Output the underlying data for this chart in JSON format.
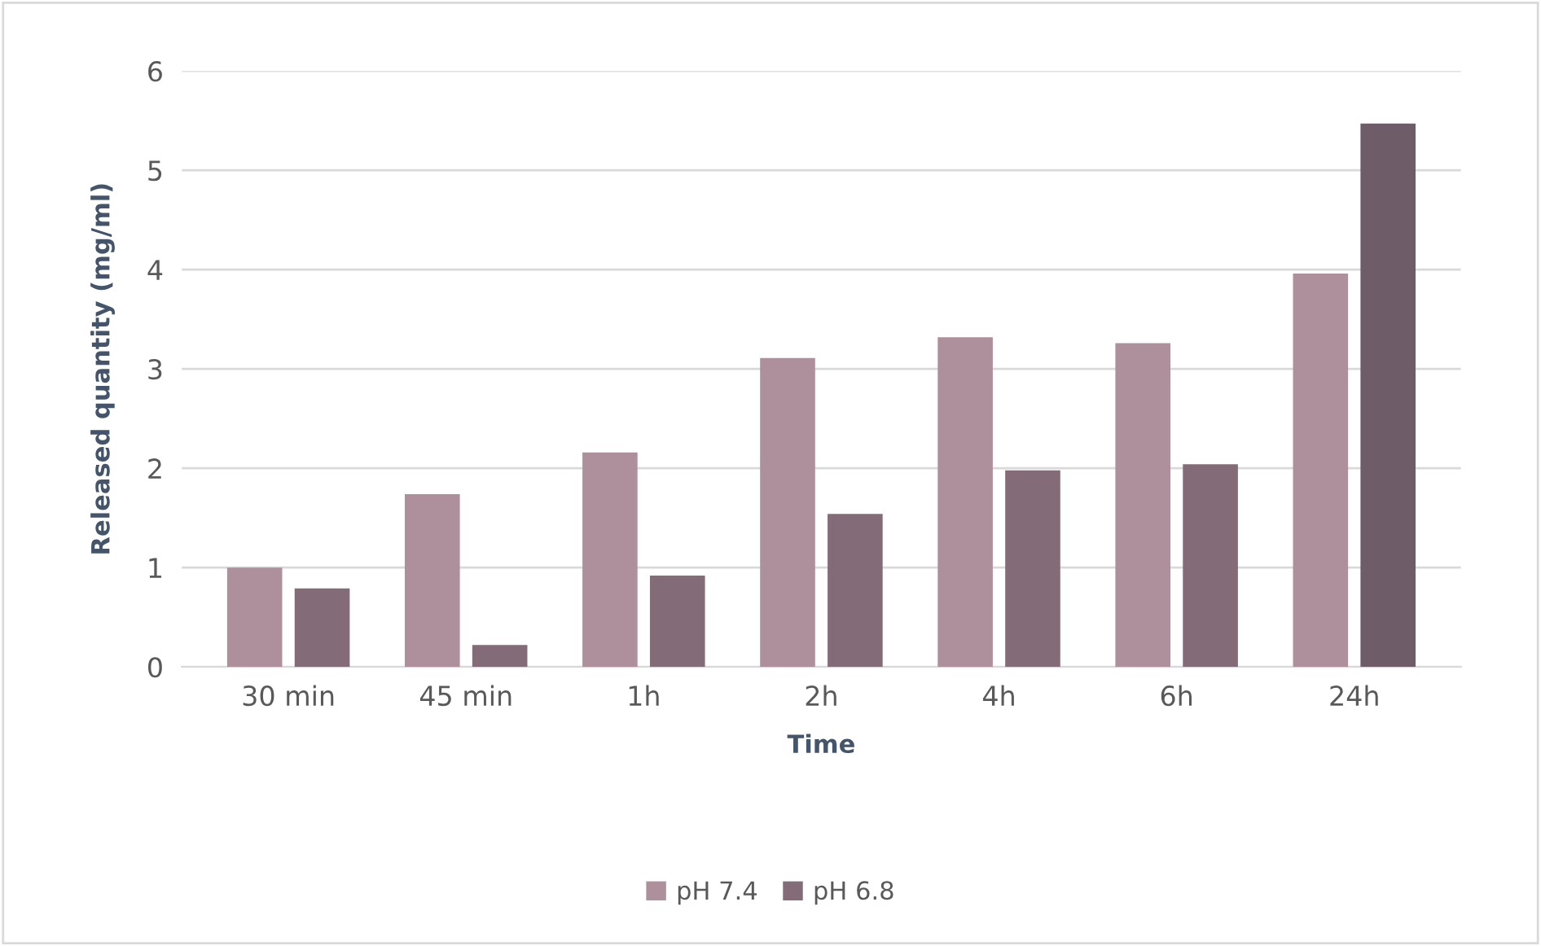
{
  "chart_data": {
    "type": "bar",
    "xlabel": "Time",
    "ylabel": "Released quantity (mg/ml)",
    "categories": [
      "30 min",
      "45 min",
      "1h",
      "2h",
      "4h",
      "6h",
      "24h"
    ],
    "series": [
      {
        "name": "pH 7.4",
        "color": "#ae8f9c",
        "values": [
          1.0,
          1.74,
          2.16,
          3.11,
          3.32,
          3.26,
          3.96
        ]
      },
      {
        "name": "pH 6.8",
        "color": "#836b78",
        "colors": [
          "#836b78",
          "#836b78",
          "#836b78",
          "#836b78",
          "#836b78",
          "#836b78",
          "#6f5c69"
        ],
        "values": [
          0.79,
          0.22,
          0.92,
          1.54,
          1.98,
          2.04,
          5.47
        ]
      }
    ],
    "ylim": [
      0,
      6
    ],
    "yticks": [
      0,
      1,
      2,
      3,
      4,
      5,
      6
    ],
    "grid": "y",
    "legend": "bottom"
  }
}
